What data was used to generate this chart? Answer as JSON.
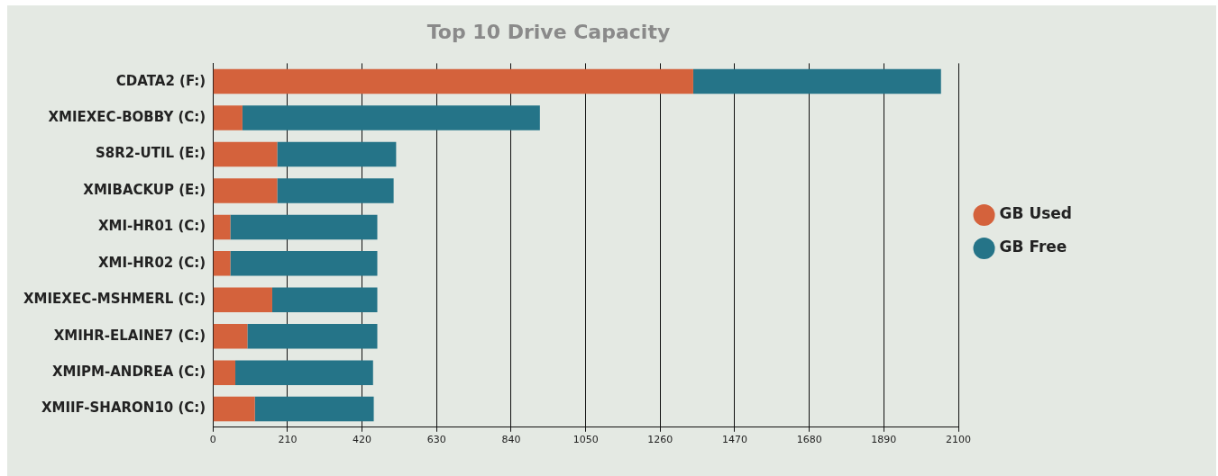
{
  "chart_data": {
    "type": "bar",
    "orientation": "horizontal",
    "stacked": true,
    "title": "Top 10 Drive Capacity",
    "categories": [
      "CDATA2 (F:)",
      "XMIEXEC-BOBBY (C:)",
      "S8R2-UTIL (E:)",
      "XMIBACKUP (E:)",
      "XMI-HR01 (C:)",
      "XMI-HR02 (C:)",
      "XMIEXEC-MSHMERL (C:)",
      "XMIHR-ELAINE7 (C:)",
      "XMIPM-ANDREA (C:)",
      "XMIIF-SHARON10 (C:)"
    ],
    "series": [
      {
        "name": "GB Used",
        "color": "#d4623c",
        "values": [
          1353,
          83,
          181,
          181,
          49,
          49,
          167,
          97,
          63,
          118
        ]
      },
      {
        "name": "GB Free",
        "color": "#257488",
        "values": [
          698,
          838,
          335,
          328,
          414,
          414,
          296,
          366,
          388,
          335
        ]
      }
    ],
    "xlim": [
      0,
      2100
    ],
    "xticks": [
      0,
      210,
      420,
      630,
      840,
      1050,
      1260,
      1470,
      1680,
      1890,
      2100
    ],
    "grid": "x",
    "legend": "right"
  }
}
